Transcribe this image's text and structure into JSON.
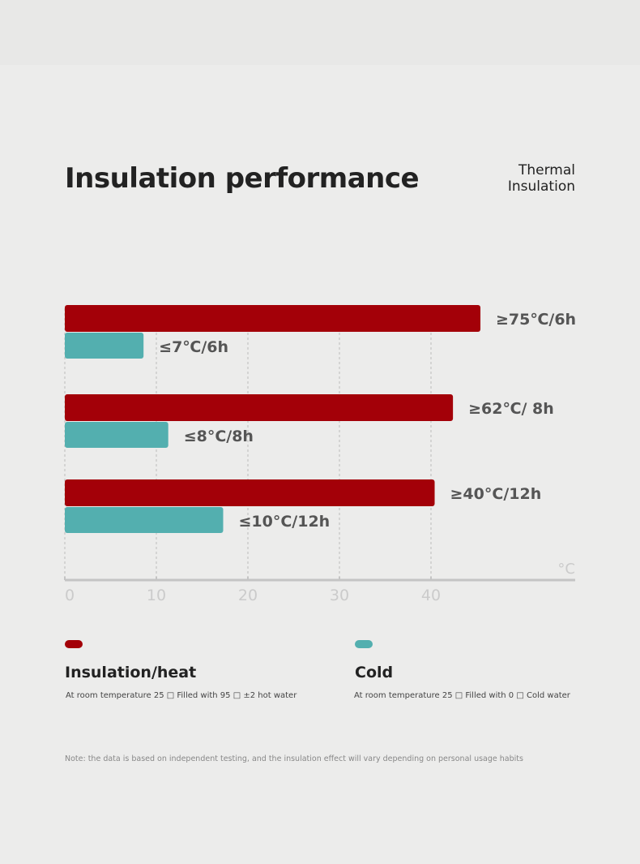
{
  "header": {
    "title": "Insulation performance",
    "subtitle_line1": "Thermal",
    "subtitle_line2": "Insulation"
  },
  "chart_data": {
    "type": "bar",
    "orientation": "horizontal",
    "unit_label": "°C",
    "xlim": [
      0,
      55
    ],
    "xticks": [
      0,
      10,
      20,
      30,
      40
    ],
    "grid": true,
    "colors": {
      "heat": "#a30008",
      "cold": "#53afaf"
    },
    "groups": [
      {
        "heat_value": 45.4,
        "heat_label": "≥75℃/6h",
        "cold_value": 8.6,
        "cold_label": "≤7℃/6h"
      },
      {
        "heat_value": 42.4,
        "heat_label": "≥62℃/ 8h",
        "cold_value": 11.3,
        "cold_label": "≤8°C/8h"
      },
      {
        "heat_value": 40.4,
        "heat_label": "≥40°C/12h",
        "cold_value": 17.3,
        "cold_label": "≤10°C/12h"
      }
    ]
  },
  "legend": {
    "heat": {
      "title": "Insulation/heat",
      "desc": "At room temperature 25 □ Filled with 95 □ ±2 hot water"
    },
    "cold": {
      "title": "Cold",
      "desc": "At room temperature 25 □ Filled with 0 □ Cold water"
    }
  },
  "note": "Note: the data is based on independent testing, and the insulation effect will vary depending on personal usage habits"
}
